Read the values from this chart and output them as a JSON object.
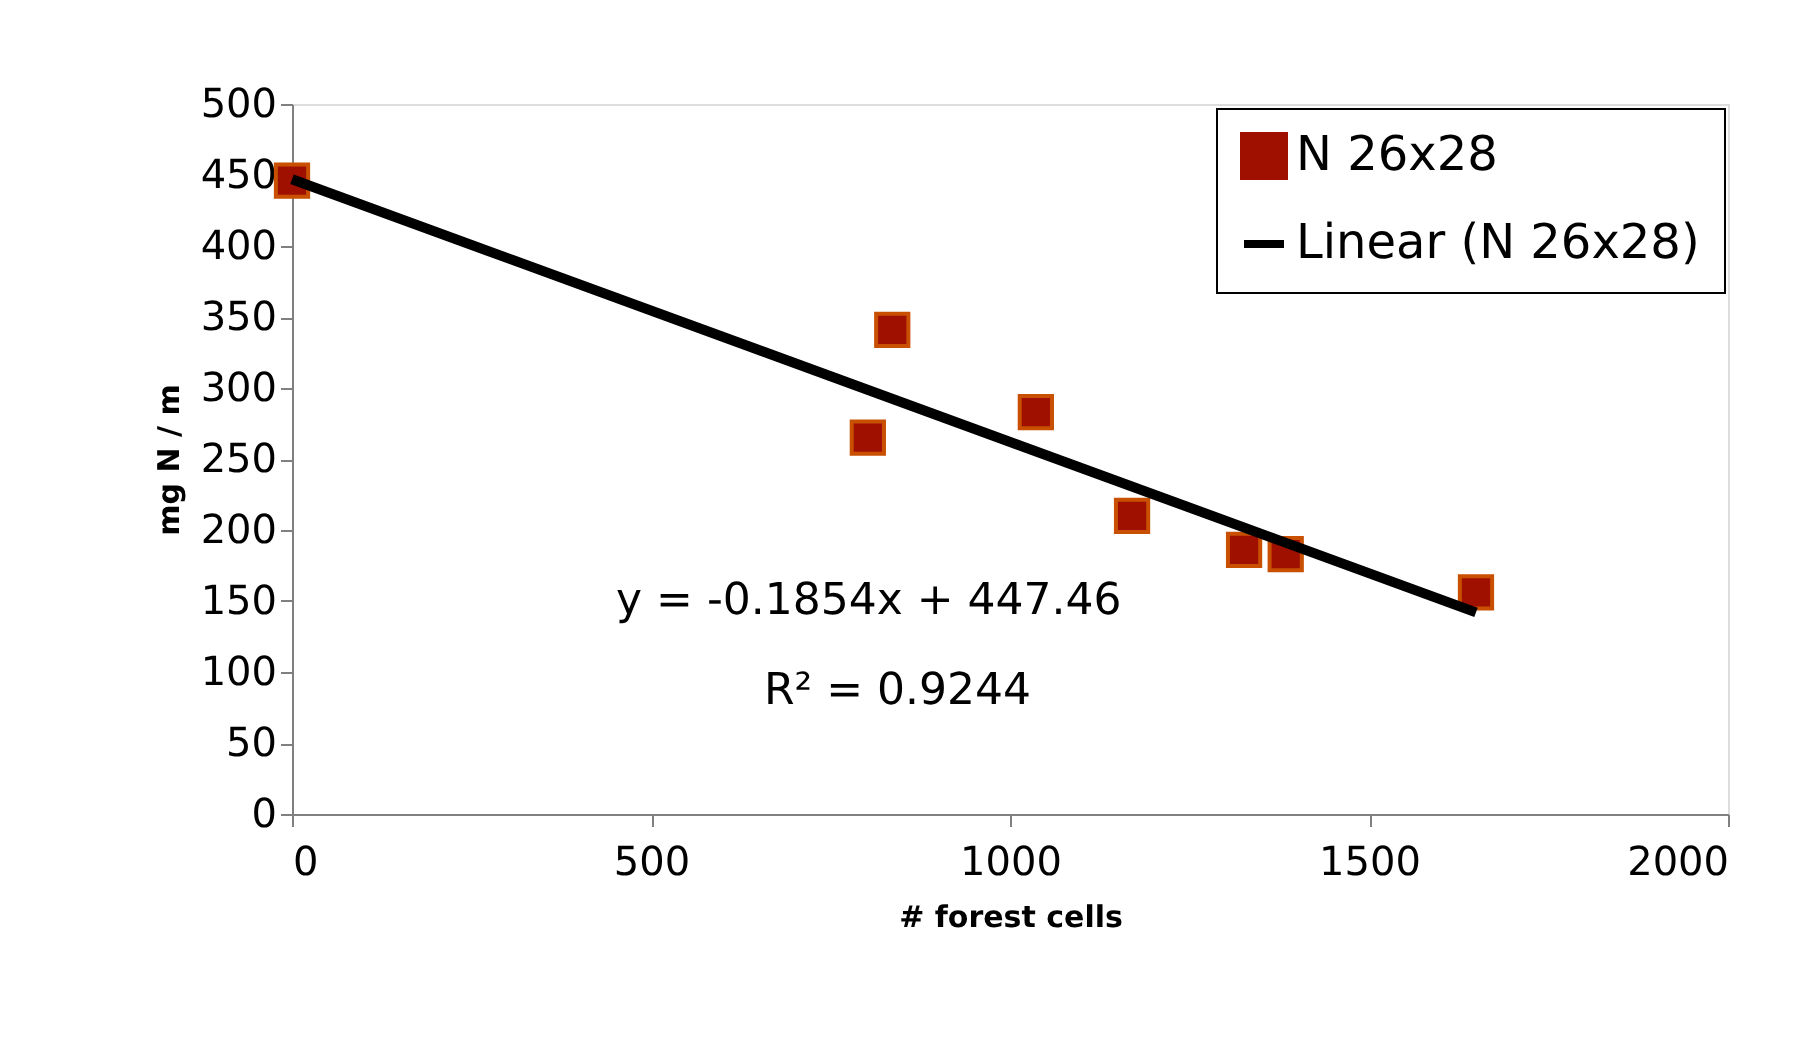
{
  "chart_data": {
    "type": "scatter",
    "xlabel": "# forest cells",
    "ylabel": "mg N / m",
    "series": [
      {
        "name": "N 26x28",
        "color": "#a01000",
        "marker": "square",
        "x": [
          0,
          802,
          836,
          1036,
          1170,
          1326,
          1384,
          1649
        ],
        "values": [
          446,
          265,
          341,
          283,
          210,
          186,
          183,
          156
        ]
      },
      {
        "name": "Linear (N 26x28)",
        "type": "line",
        "color": "#000000",
        "x": [
          0,
          1649
        ],
        "values": [
          447,
          142
        ]
      }
    ],
    "xlim": [
      0,
      2000
    ],
    "xticks": [
      0,
      500,
      1000,
      1500,
      2000
    ],
    "ylim": [
      0,
      500
    ],
    "yticks": [
      0,
      50,
      100,
      150,
      200,
      250,
      300,
      350,
      400,
      450,
      500
    ],
    "grid": false,
    "legend": "top right",
    "annotations": [
      "y = -0.1854x + 447.46",
      "R² = 0.9244"
    ]
  }
}
